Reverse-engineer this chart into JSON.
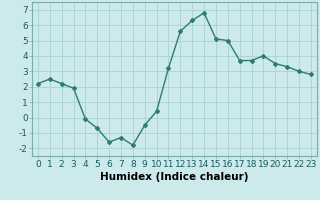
{
  "x": [
    0,
    1,
    2,
    3,
    4,
    5,
    6,
    7,
    8,
    9,
    10,
    11,
    12,
    13,
    14,
    15,
    16,
    17,
    18,
    19,
    20,
    21,
    22,
    23
  ],
  "y": [
    2.2,
    2.5,
    2.2,
    1.9,
    -0.1,
    -0.7,
    -1.6,
    -1.3,
    -1.8,
    -0.5,
    0.4,
    3.2,
    5.6,
    6.3,
    6.8,
    5.1,
    5.0,
    3.7,
    3.7,
    4.0,
    3.5,
    3.3,
    3.0,
    2.8
  ],
  "line_color": "#2e7d6e",
  "bg_color": "#cce9eb",
  "grid_color": "#afd4d6",
  "xlabel": "Humidex (Indice chaleur)",
  "ylim": [
    -2.5,
    7.5
  ],
  "xlim": [
    -0.5,
    23.5
  ],
  "yticks": [
    -2,
    -1,
    0,
    1,
    2,
    3,
    4,
    5,
    6,
    7
  ],
  "xticks": [
    0,
    1,
    2,
    3,
    4,
    5,
    6,
    7,
    8,
    9,
    10,
    11,
    12,
    13,
    14,
    15,
    16,
    17,
    18,
    19,
    20,
    21,
    22,
    23
  ],
  "xlabel_fontsize": 7.5,
  "tick_fontsize": 6.5,
  "marker": "D",
  "markersize": 2.0,
  "linewidth": 1.0
}
